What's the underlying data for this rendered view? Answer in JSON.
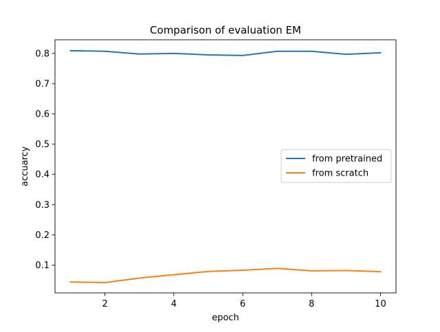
{
  "chart_data": {
    "type": "line",
    "title": "Comparison of evaluation EM",
    "xlabel": "epoch",
    "ylabel": "accuarcy",
    "xlim": [
      0.55,
      10.45
    ],
    "ylim": [
      0.008,
      0.845
    ],
    "grid": false,
    "legend_position": "center-right",
    "x": [
      1,
      2,
      3,
      4,
      5,
      6,
      7,
      8,
      9,
      10
    ],
    "x_ticks": [
      2,
      4,
      6,
      8,
      10
    ],
    "y_ticks": [
      0.1,
      0.2,
      0.3,
      0.4,
      0.5,
      0.6,
      0.7,
      0.8
    ],
    "series": [
      {
        "name": "from pretrained",
        "color": "#1f77b4",
        "values": [
          0.809,
          0.807,
          0.798,
          0.8,
          0.795,
          0.793,
          0.807,
          0.807,
          0.797,
          0.802
        ]
      },
      {
        "name": "from scratch",
        "color": "#ff7f0e",
        "values": [
          0.044,
          0.042,
          0.057,
          0.068,
          0.079,
          0.083,
          0.089,
          0.081,
          0.082,
          0.078
        ]
      }
    ]
  }
}
